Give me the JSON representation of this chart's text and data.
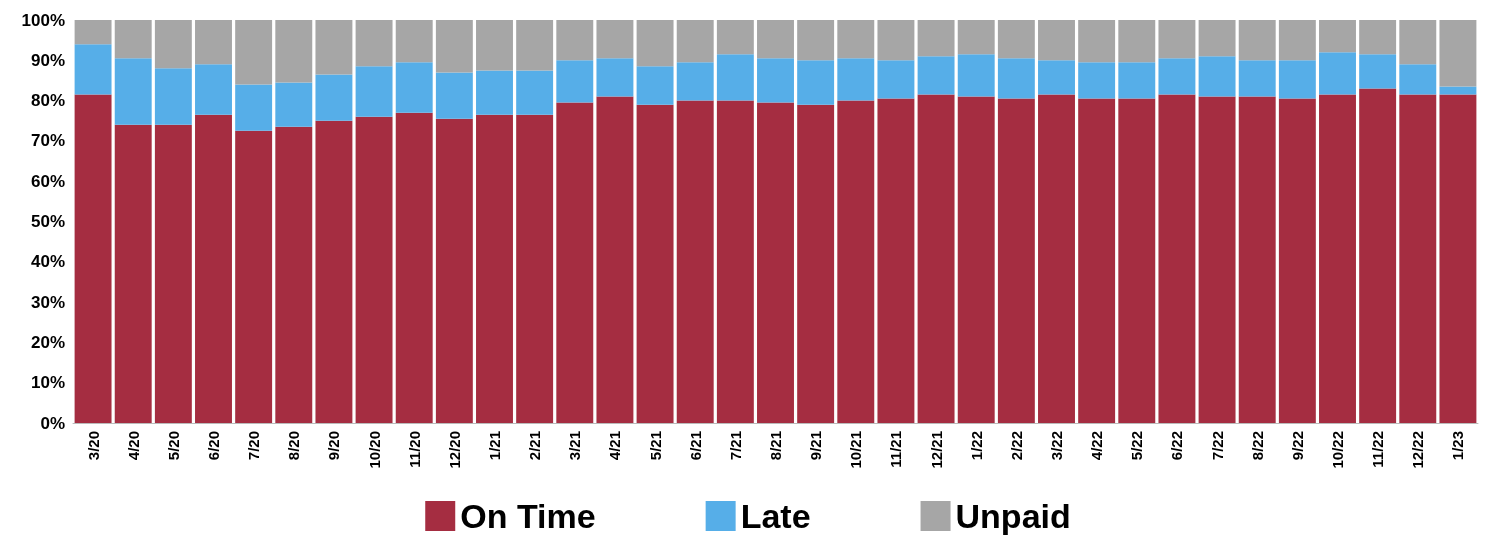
{
  "chart_data": {
    "type": "bar",
    "stacked": true,
    "categories": [
      "3/20",
      "4/20",
      "5/20",
      "6/20",
      "7/20",
      "8/20",
      "9/20",
      "10/20",
      "11/20",
      "12/20",
      "1/21",
      "2/21",
      "3/21",
      "4/21",
      "5/21",
      "6/21",
      "7/21",
      "8/21",
      "9/21",
      "10/21",
      "11/21",
      "12/21",
      "1/22",
      "2/22",
      "3/22",
      "4/22",
      "5/22",
      "6/22",
      "7/22",
      "8/22",
      "9/22",
      "10/22",
      "11/22",
      "12/22",
      "1/23"
    ],
    "series": [
      {
        "name": "On Time",
        "color": "#a52d41",
        "values": [
          81.5,
          74,
          74,
          76.5,
          72.5,
          73.5,
          75,
          76,
          77,
          75.5,
          76.5,
          76.5,
          79.5,
          81,
          79,
          80,
          80,
          79.5,
          79,
          80,
          80.5,
          81.5,
          81,
          80.5,
          81.5,
          80.5,
          80.5,
          81.5,
          81,
          81,
          80.5,
          81.5,
          83,
          81.5,
          81.5
        ]
      },
      {
        "name": "Late",
        "color": "#56aee8",
        "values": [
          12.5,
          16.5,
          14,
          12.5,
          11.5,
          11,
          11.5,
          12.5,
          12.5,
          11.5,
          11,
          11,
          10.5,
          9.5,
          9.5,
          9.5,
          11.5,
          11,
          11,
          10.5,
          9.5,
          9.5,
          10.5,
          10,
          8.5,
          9,
          9,
          9,
          10,
          9,
          9.5,
          10.5,
          8.5,
          7.5,
          2
        ]
      },
      {
        "name": "Unpaid",
        "color": "#a6a6a6",
        "values": [
          6,
          9.5,
          12,
          11,
          16,
          15.5,
          13.5,
          11.5,
          10.5,
          13,
          12.5,
          12.5,
          10,
          9.5,
          11.5,
          10.5,
          8.5,
          9.5,
          10,
          9.5,
          10,
          9,
          8.5,
          9.5,
          10,
          10.5,
          10.5,
          9.5,
          9,
          10,
          10,
          8,
          8.5,
          11,
          16.5
        ]
      }
    ],
    "ylim": [
      0,
      100
    ],
    "yticks": [
      {
        "value": 0,
        "label": "0%"
      },
      {
        "value": 10,
        "label": "10%"
      },
      {
        "value": 20,
        "label": "20%"
      },
      {
        "value": 30,
        "label": "30%"
      },
      {
        "value": 40,
        "label": "40%"
      },
      {
        "value": 50,
        "label": "50%"
      },
      {
        "value": 60,
        "label": "60%"
      },
      {
        "value": 70,
        "label": "70%"
      },
      {
        "value": 80,
        "label": "80%"
      },
      {
        "value": 90,
        "label": "90%"
      },
      {
        "value": 100,
        "label": "100%"
      }
    ],
    "grid": false,
    "legend": "bottom"
  }
}
